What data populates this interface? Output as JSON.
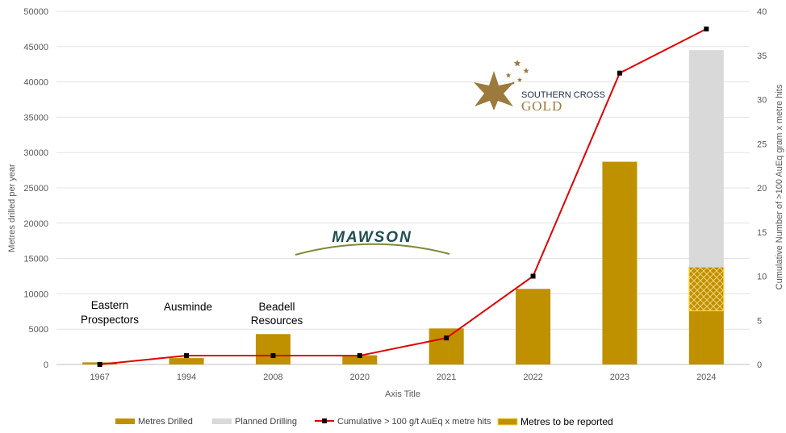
{
  "chart_data": {
    "type": "bar",
    "categories": [
      "1967",
      "1994",
      "2008",
      "2020",
      "2021",
      "2022",
      "2023",
      "2024"
    ],
    "series": [
      {
        "name": "Metres Drilled",
        "kind": "bar",
        "axis": "left",
        "color": "#bf9000",
        "values": [
          300,
          900,
          4300,
          1300,
          5100,
          10700,
          28700,
          7600
        ]
      },
      {
        "name": "Metres to be reported",
        "kind": "bar",
        "axis": "left",
        "color": "#bf9000",
        "pattern": "crosshatch",
        "values": [
          0,
          0,
          0,
          0,
          0,
          0,
          0,
          6200
        ]
      },
      {
        "name": "Planned Drilling",
        "kind": "bar",
        "axis": "left",
        "color": "#d9d9d9",
        "values": [
          0,
          0,
          0,
          0,
          0,
          0,
          0,
          30700
        ]
      },
      {
        "name": "Cumulative > 100 g/t AuEq x metre hits",
        "kind": "line",
        "axis": "right",
        "color": "#e00000",
        "marker": "square",
        "values": [
          0,
          1,
          1,
          1,
          3,
          10,
          33,
          38
        ]
      }
    ],
    "xlabel": "Axis Title",
    "ylabel": "Metres drilled per year",
    "y2label": "Cumulative Number of >100 AuEq gram x metre hits",
    "ylim": [
      0,
      50000
    ],
    "y2lim": [
      0,
      40
    ],
    "yticks": [
      "0",
      "5000",
      "10000",
      "15000",
      "20000",
      "25000",
      "30000",
      "35000",
      "40000",
      "45000",
      "50000"
    ],
    "y2ticks": [
      "0",
      "5",
      "10",
      "15",
      "20",
      "25",
      "30",
      "35",
      "40"
    ],
    "grid": true,
    "legend_position": "bottom",
    "legend": [
      "Metres Drilled",
      "Planned Drilling",
      "Cumulative > 100 g/t AuEq x metre hits",
      "Metres to be reported"
    ],
    "annotations": [
      {
        "category": "1967",
        "lines": [
          "Eastern",
          "Prospectors"
        ]
      },
      {
        "category": "1994",
        "lines": [
          "Ausminde"
        ]
      },
      {
        "category": "2008",
        "lines": [
          "Beadell",
          "Resources"
        ]
      }
    ],
    "logos": {
      "mawson": "MAWSON",
      "southern_cross_top": "SOUTHERN CROSS",
      "southern_cross_bottom": "GOLD"
    }
  }
}
